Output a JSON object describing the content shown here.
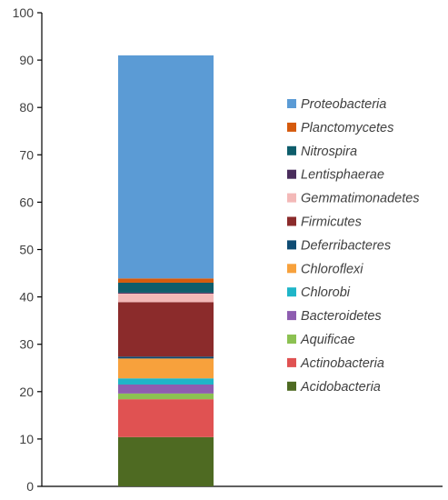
{
  "chart_data": {
    "type": "bar",
    "stacked": true,
    "title": "",
    "xlabel": "",
    "ylabel": "",
    "ylim": [
      0,
      100
    ],
    "yticks": [
      0,
      10,
      20,
      30,
      40,
      50,
      60,
      70,
      80,
      90,
      100
    ],
    "grid": false,
    "legend_position": "right",
    "series": [
      {
        "name": "Acidobacteria",
        "value": 10.4,
        "color": "#4e6a22"
      },
      {
        "name": "Actinobacteria",
        "value": 8.0,
        "color": "#e05252"
      },
      {
        "name": "Aquificae",
        "value": 1.2,
        "color": "#8cc152"
      },
      {
        "name": "Bacteroidetes",
        "value": 1.9,
        "color": "#8e5db0"
      },
      {
        "name": "Chlorobi",
        "value": 1.3,
        "color": "#1fb5c8"
      },
      {
        "name": "Chloroflexi",
        "value": 4.2,
        "color": "#f7a13c"
      },
      {
        "name": "Deferribacteres",
        "value": 0.4,
        "color": "#0f4c73"
      },
      {
        "name": "Firmicutes",
        "value": 11.5,
        "color": "#8b2b2b"
      },
      {
        "name": "Gemmatimonadetes",
        "value": 1.8,
        "color": "#f3b9b8"
      },
      {
        "name": "Lentisphaerae",
        "value": 0.2,
        "color": "#4a2d5c"
      },
      {
        "name": "Nitrospira",
        "value": 2.1,
        "color": "#0e5d6b"
      },
      {
        "name": "Planctomycetes",
        "value": 0.9,
        "color": "#d55a0d"
      },
      {
        "name": "Proteobacteria",
        "value": 47.1,
        "color": "#5b9bd5"
      }
    ]
  }
}
